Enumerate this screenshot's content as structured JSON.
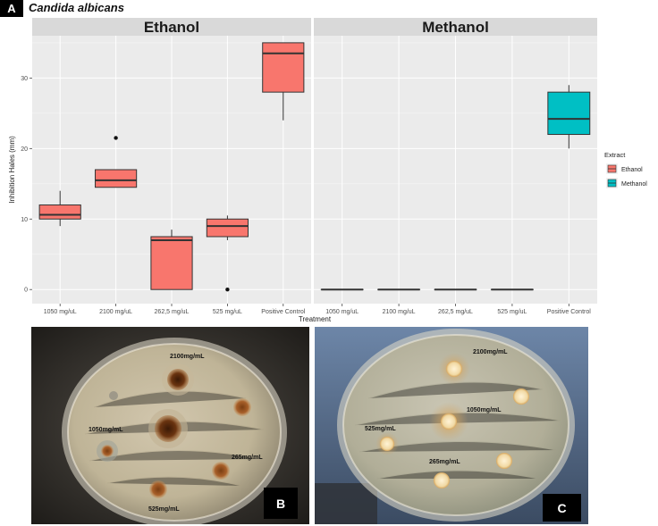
{
  "figure": {
    "panel_a_label": "A",
    "title": "Candida albicans",
    "panel_b_label": "B",
    "panel_c_label": "C"
  },
  "chart_data": {
    "type": "box",
    "facets": [
      "Ethanol",
      "Methanol"
    ],
    "categories": [
      "1050 mg/uL",
      "2100 mg/uL",
      "262,5 mg/uL",
      "525 mg/uL",
      "Positive Control"
    ],
    "xlabel": "Treatment",
    "ylabel": "Inhibition Hales (mm)",
    "yticks": [
      0,
      10,
      20,
      30
    ],
    "ylim": [
      -2,
      36
    ],
    "grid": true,
    "legend": {
      "title": "Extract",
      "position": "right",
      "entries": [
        {
          "name": "Ethanol",
          "color": "#f8766d"
        },
        {
          "name": "Methanol",
          "color": "#00bfc4"
        }
      ]
    },
    "series": [
      {
        "name": "Ethanol",
        "color": "#f8766d",
        "boxes": [
          {
            "category": "1050 mg/uL",
            "min": 9,
            "q1": 10,
            "median": 10.6,
            "q3": 12,
            "max": 14,
            "outliers": []
          },
          {
            "category": "2100 mg/uL",
            "min": 14.5,
            "q1": 14.5,
            "median": 15.5,
            "q3": 17,
            "max": 17,
            "outliers": [
              21.5
            ]
          },
          {
            "category": "262,5 mg/uL",
            "min": 0,
            "q1": 0,
            "median": 7,
            "q3": 7.5,
            "max": 8.5,
            "outliers": []
          },
          {
            "category": "525 mg/uL",
            "min": 7,
            "q1": 7.5,
            "median": 9,
            "q3": 10,
            "max": 10.5,
            "outliers": [
              0
            ]
          },
          {
            "category": "Positive Control",
            "min": 24,
            "q1": 28,
            "median": 33.5,
            "q3": 35,
            "max": 35,
            "outliers": []
          }
        ]
      },
      {
        "name": "Methanol",
        "color": "#00bfc4",
        "boxes": [
          {
            "category": "1050 mg/uL",
            "min": 0,
            "q1": 0,
            "median": 0,
            "q3": 0,
            "max": 0,
            "outliers": []
          },
          {
            "category": "2100 mg/uL",
            "min": 0,
            "q1": 0,
            "median": 0,
            "q3": 0,
            "max": 0,
            "outliers": []
          },
          {
            "category": "262,5 mg/uL",
            "min": 0,
            "q1": 0,
            "median": 0,
            "q3": 0,
            "max": 0,
            "outliers": []
          },
          {
            "category": "525 mg/uL",
            "min": 0,
            "q1": 0,
            "median": 0,
            "q3": 0,
            "max": 0,
            "outliers": []
          },
          {
            "category": "Positive Control",
            "min": 20,
            "q1": 22,
            "median": 24.2,
            "q3": 28,
            "max": 29,
            "outliers": []
          }
        ]
      }
    ]
  },
  "photo_b": {
    "labels": [
      "2100mg/mL",
      "1050mg/mL",
      "265mg/mL",
      "525mg/mL"
    ]
  },
  "photo_c": {
    "labels": [
      "2100mg/mL",
      "1050mg/mL",
      "525mg/mL",
      "265mg/mL"
    ]
  }
}
